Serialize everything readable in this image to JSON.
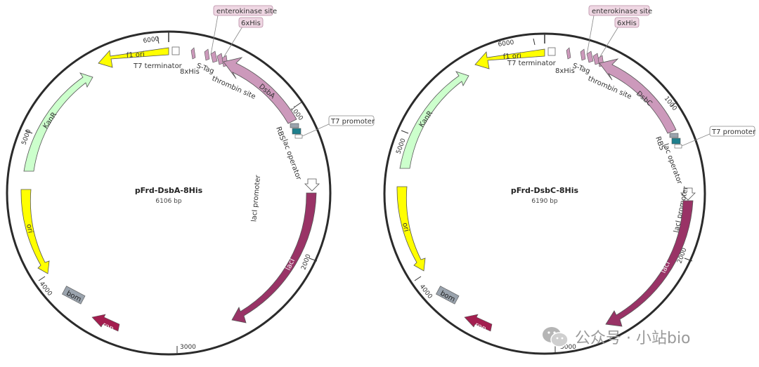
{
  "maps": [
    {
      "name": "pFrd-DsbA-8His",
      "size": "6106 bp",
      "gene": "DsbA",
      "ticks": [
        "6000",
        "1000",
        "5000",
        "2000",
        "4000",
        "3000"
      ],
      "features": {
        "f1ori": "f1 ori",
        "t7term": "T7 terminator",
        "his8": "8xHis",
        "stag": "S-Tag",
        "thrombin": "thrombin site",
        "entero": "enterokinase site",
        "his6": "6xHis",
        "rbs": "RBS",
        "lacop": "lac operator",
        "t7prom": "T7 promoter",
        "laciprom": "lacI promoter",
        "laci": "lacI",
        "kanr": "KanR",
        "ori": "ori",
        "bom": "bom",
        "rop": "rop"
      }
    },
    {
      "name": "pFrd-DsbC-8His",
      "size": "6190 bp",
      "gene": "DsbC",
      "ticks": [
        "6000",
        "1000",
        "5000",
        "2000",
        "4000",
        "3000"
      ],
      "features": {
        "f1ori": "f1 ori",
        "t7term": "T7 terminator",
        "his8": "8xHis",
        "stag": "S-Tag",
        "thrombin": "thrombin site",
        "entero": "enterokinase site",
        "his6": "6xHis",
        "rbs": "RBS",
        "lacop": "lac operator",
        "t7prom": "T7 promoter",
        "laciprom": "lacI promoter",
        "laci": "lacI",
        "kanr": "KanR",
        "ori": "ori",
        "bom": "bom",
        "rop": "rop"
      }
    }
  ],
  "watermark": "公众号 · 小站bio",
  "colors": {
    "f1ori": "#ffff00",
    "kanr": "#ccffcc",
    "ori": "#ffff00",
    "bom": "#9aa3ad",
    "rop": "#a31e4f",
    "laci": "#993366",
    "gene": "#cc99bb",
    "tag": "#cc99bb",
    "rbs": "#9aa3ad",
    "lacop": "#1e7f8c"
  }
}
